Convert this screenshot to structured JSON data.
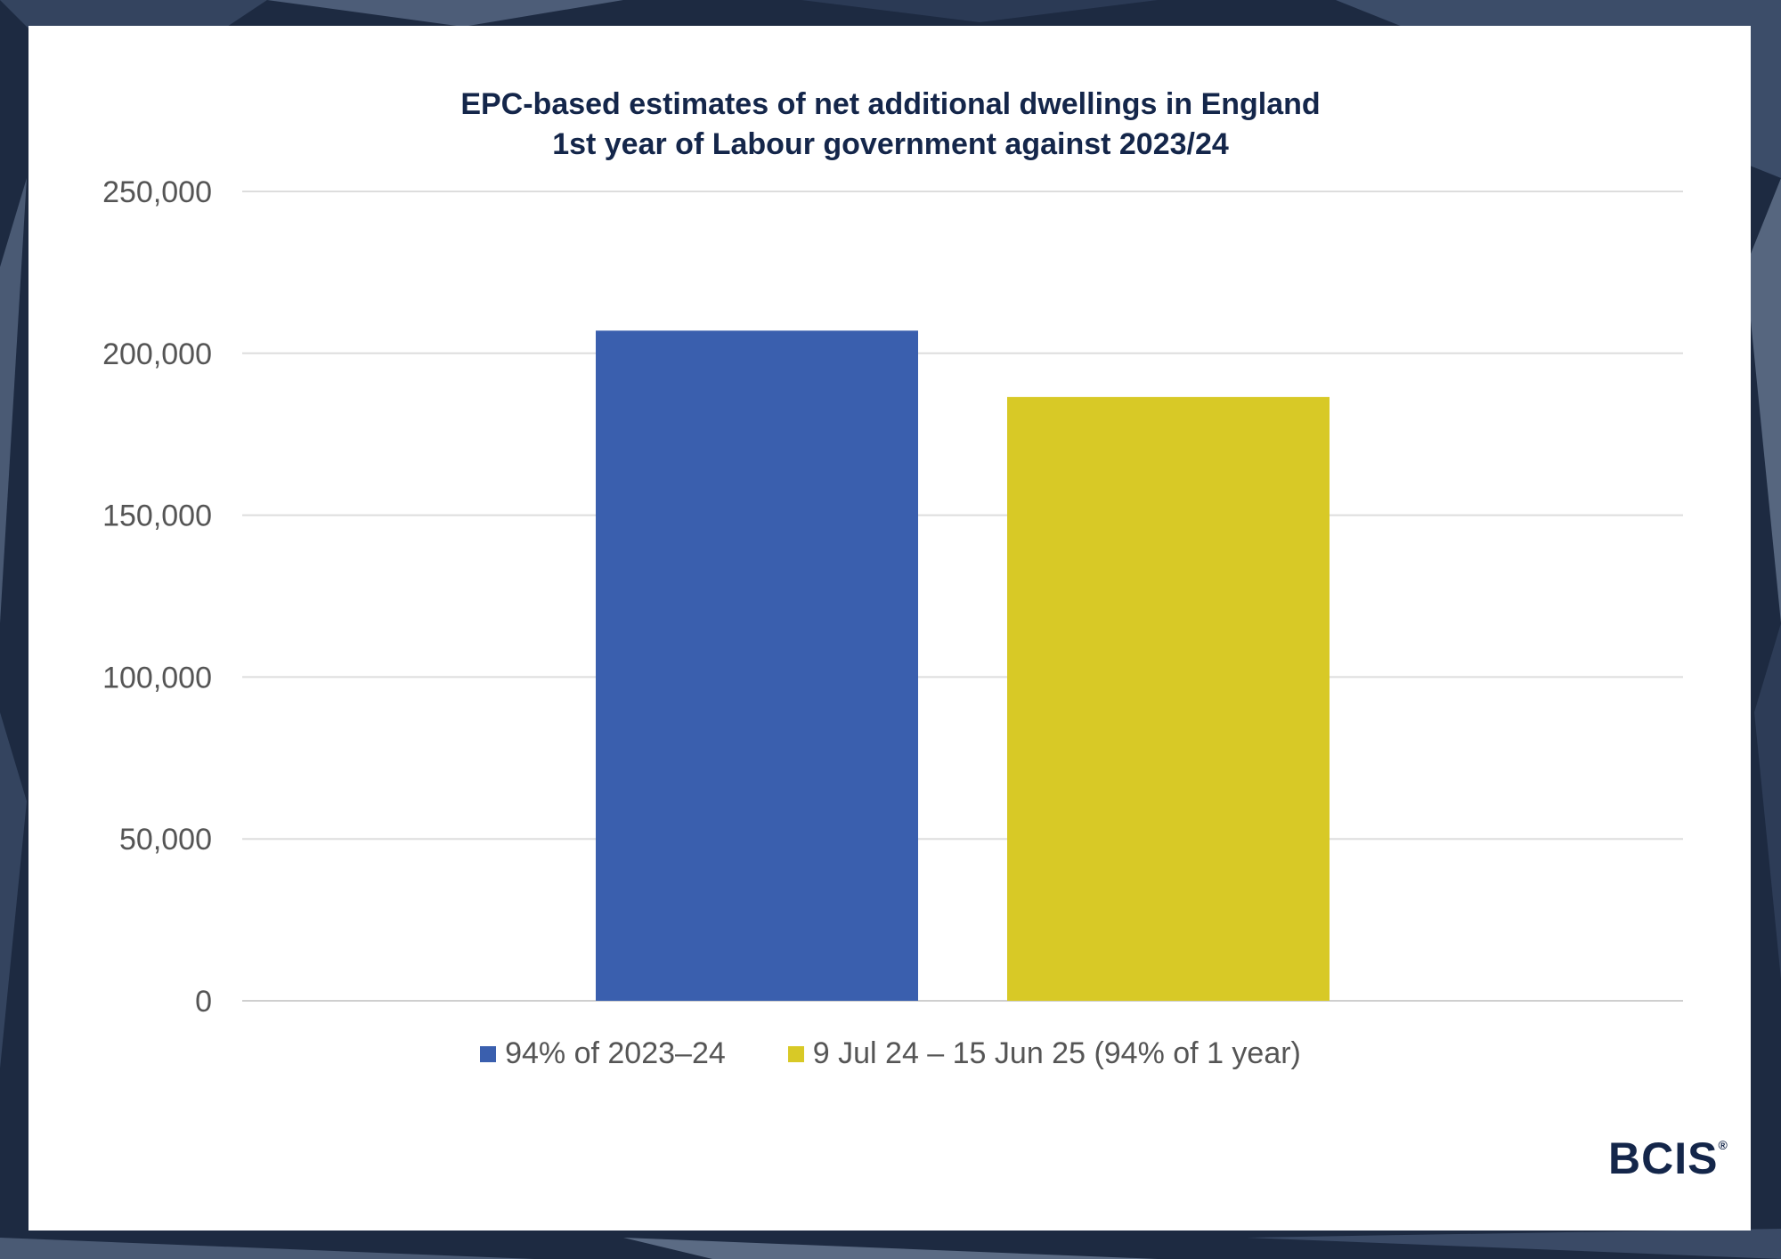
{
  "chart_data": {
    "type": "bar",
    "title": "EPC-based estimates of net additional dwellings in England",
    "subtitle": "1st year of Labour government against 2023/24",
    "xlabel": "",
    "ylabel": "",
    "ylim": [
      0,
      250000
    ],
    "yticks": [
      0,
      50000,
      100000,
      150000,
      200000,
      250000
    ],
    "ytick_labels": [
      "0",
      "50,000",
      "100,000",
      "150,000",
      "200,000",
      "250,000"
    ],
    "grid": true,
    "legend_position": "bottom",
    "series": [
      {
        "name": "94% of 2023–24",
        "values": [
          207000
        ],
        "color": "#3a5fae"
      },
      {
        "name": "9 Jul 24 – 15 Jun 25 (94% of 1 year)",
        "values": [
          186500
        ],
        "color": "#d8c926"
      }
    ]
  },
  "brand": {
    "logo_text": "BCIS",
    "registered_mark": "®"
  }
}
